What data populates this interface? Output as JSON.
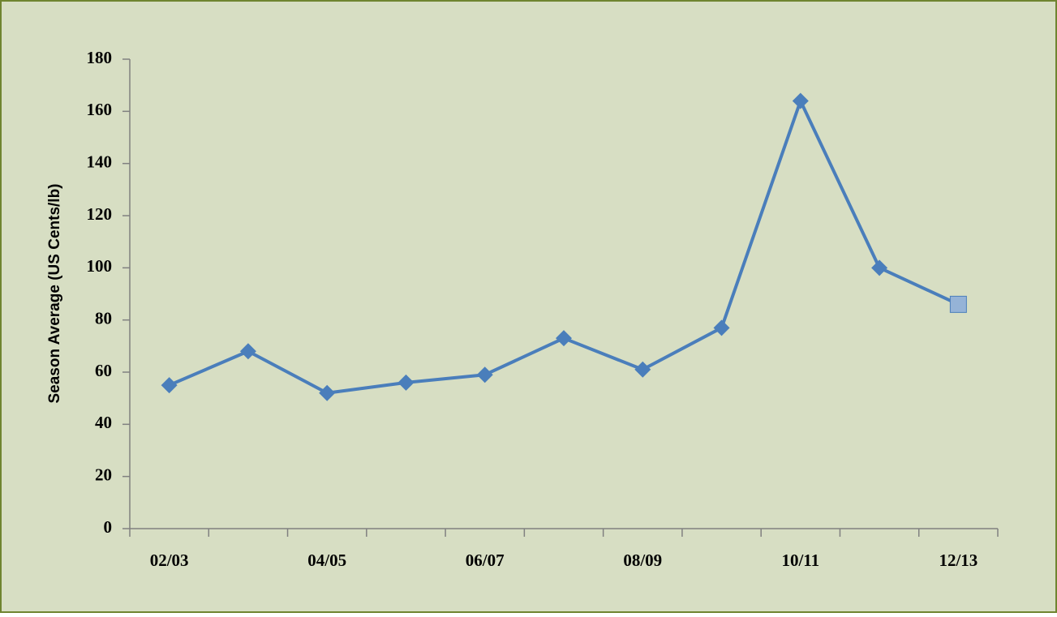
{
  "chart_data": {
    "type": "line",
    "y_label": "Season Average (US Cents/lb)",
    "categories": [
      "02/03",
      null,
      "04/05",
      null,
      "06/07",
      null,
      "08/09",
      null,
      "10/11",
      null,
      "12/13"
    ],
    "series": [
      {
        "name": "Season Average",
        "color": "#4a7ebb",
        "marker": "diamond",
        "values": [
          55,
          68,
          52,
          56,
          59,
          73,
          61,
          77,
          164,
          100,
          86
        ],
        "last_marker": {
          "shape": "square",
          "color": "#95b3d7"
        }
      }
    ],
    "ylim": [
      0,
      180
    ],
    "yticks": [
      0,
      20,
      40,
      60,
      80,
      100,
      120,
      140,
      160,
      180
    ],
    "background": "#d7dec3",
    "border": "#6f8430",
    "grid": false
  }
}
